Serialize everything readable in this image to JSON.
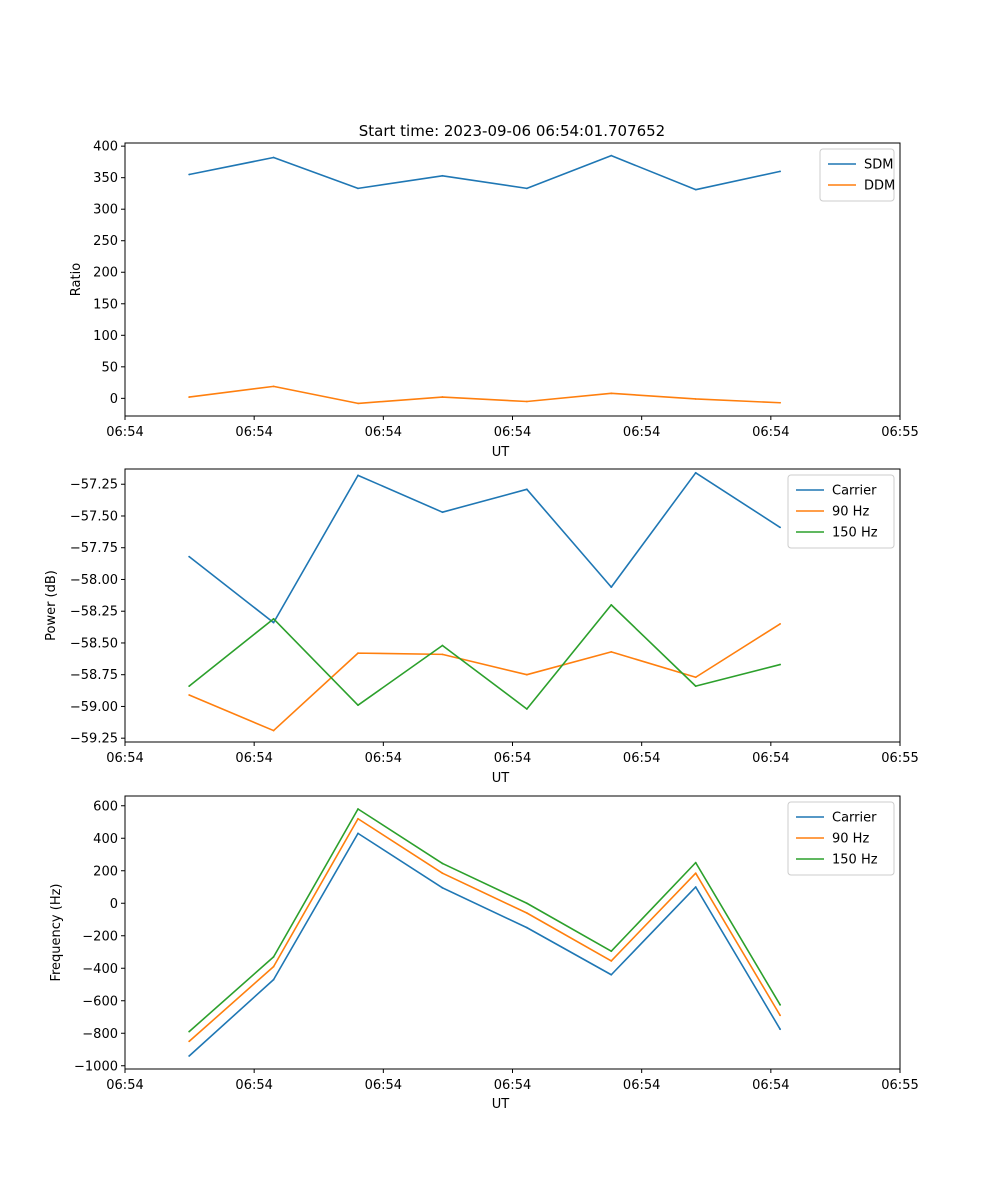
{
  "figure": {
    "title": "Start time: 2023-09-06 06:54:01.707652"
  },
  "chart_data": [
    {
      "type": "line",
      "title": "Start time: 2023-09-06 06:54:01.707652",
      "xlabel": "UT",
      "ylabel": "Ratio",
      "x_index": [
        0,
        1,
        2,
        3,
        4,
        5,
        6,
        7
      ],
      "xlim": [
        -0.76,
        8.42
      ],
      "x_tick_positions": [
        -0.76,
        0.77,
        2.3,
        3.83,
        5.36,
        6.89,
        8.42
      ],
      "x_tick_labels": [
        "06:54",
        "06:54",
        "06:54",
        "06:54",
        "06:54",
        "06:54",
        "06:55"
      ],
      "ylim": [
        -28,
        405
      ],
      "y_ticks": [
        0,
        50,
        100,
        150,
        200,
        250,
        300,
        350,
        400
      ],
      "y_tick_labels": [
        "0",
        "50",
        "100",
        "150",
        "200",
        "250",
        "300",
        "350",
        "400"
      ],
      "legend_position": "top-right",
      "series": [
        {
          "name": "SDM",
          "color": "#1f77b4",
          "values": [
            355,
            382,
            333,
            353,
            333,
            385,
            331,
            360
          ]
        },
        {
          "name": "DDM",
          "color": "#ff7f0e",
          "values": [
            2,
            19,
            -8,
            2,
            -5,
            8,
            -1,
            -7
          ]
        }
      ]
    },
    {
      "type": "line",
      "title": "",
      "xlabel": "UT",
      "ylabel": "Power (dB)",
      "x_index": [
        0,
        1,
        2,
        3,
        4,
        5,
        6,
        7
      ],
      "xlim": [
        -0.76,
        8.42
      ],
      "x_tick_positions": [
        -0.76,
        0.77,
        2.3,
        3.83,
        5.36,
        6.89,
        8.42
      ],
      "x_tick_labels": [
        "06:54",
        "06:54",
        "06:54",
        "06:54",
        "06:54",
        "06:54",
        "06:55"
      ],
      "ylim": [
        -59.28,
        -57.13
      ],
      "y_ticks": [
        -59.25,
        -59.0,
        -58.75,
        -58.5,
        -58.25,
        -58.0,
        -57.75,
        -57.5,
        -57.25
      ],
      "y_tick_labels": [
        "−59.25",
        "−59.00",
        "−58.75",
        "−58.50",
        "−58.25",
        "−58.00",
        "−57.75",
        "−57.50",
        "−57.25"
      ],
      "legend_position": "top-right",
      "series": [
        {
          "name": "Carrier",
          "color": "#1f77b4",
          "values": [
            -57.82,
            -58.34,
            -57.18,
            -57.47,
            -57.29,
            -58.06,
            -57.16,
            -57.59
          ]
        },
        {
          "name": "90 Hz",
          "color": "#ff7f0e",
          "values": [
            -58.91,
            -59.19,
            -58.58,
            -58.59,
            -58.75,
            -58.57,
            -58.77,
            -58.35
          ]
        },
        {
          "name": "150 Hz",
          "color": "#2ca02c",
          "values": [
            -58.84,
            -58.31,
            -58.99,
            -58.52,
            -59.02,
            -58.2,
            -58.84,
            -58.67
          ]
        }
      ]
    },
    {
      "type": "line",
      "title": "",
      "xlabel": "UT",
      "ylabel": "Frequency (Hz)",
      "x_index": [
        0,
        1,
        2,
        3,
        4,
        5,
        6,
        7
      ],
      "xlim": [
        -0.76,
        8.42
      ],
      "x_tick_positions": [
        -0.76,
        0.77,
        2.3,
        3.83,
        5.36,
        6.89,
        8.42
      ],
      "x_tick_labels": [
        "06:54",
        "06:54",
        "06:54",
        "06:54",
        "06:54",
        "06:54",
        "06:55"
      ],
      "ylim": [
        -1020,
        660
      ],
      "y_ticks": [
        -1000,
        -800,
        -600,
        -400,
        -200,
        0,
        200,
        400,
        600
      ],
      "y_tick_labels": [
        "−1000",
        "−800",
        "−600",
        "−400",
        "−200",
        "0",
        "200",
        "400",
        "600"
      ],
      "legend_position": "top-right",
      "series": [
        {
          "name": "Carrier",
          "color": "#1f77b4",
          "values": [
            -940,
            -470,
            430,
            95,
            -150,
            -440,
            100,
            -775
          ]
        },
        {
          "name": "90 Hz",
          "color": "#ff7f0e",
          "values": [
            -850,
            -390,
            520,
            185,
            -60,
            -355,
            185,
            -690
          ]
        },
        {
          "name": "150 Hz",
          "color": "#2ca02c",
          "values": [
            -790,
            -330,
            580,
            245,
            0,
            -295,
            250,
            -625
          ]
        }
      ]
    }
  ]
}
